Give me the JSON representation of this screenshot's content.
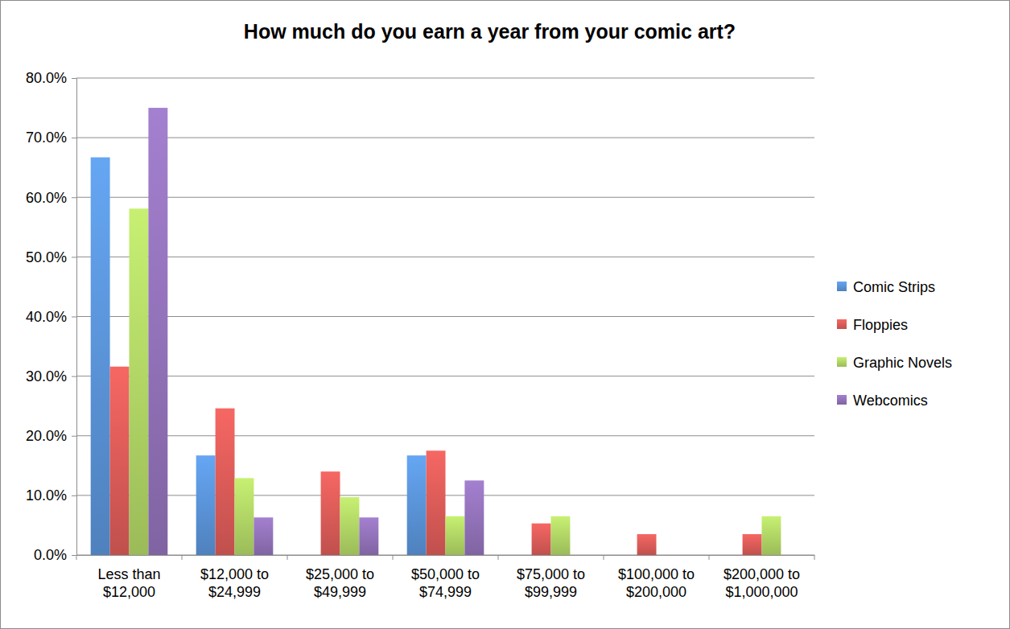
{
  "chart_data": {
    "type": "bar",
    "title": "How much do you earn a year from your comic art?",
    "categories": [
      "Less than $12,000",
      "$12,000 to $24,999",
      "$25,000 to $49,999",
      "$50,000 to $74,999",
      "$75,000 to $99,999",
      "$100,000 to $200,000",
      "$200,000 to $1,000,000"
    ],
    "series": [
      {
        "name": "Comic Strips",
        "color": "#4f81bd",
        "values": [
          66.7,
          16.7,
          0,
          16.7,
          0,
          0,
          0
        ]
      },
      {
        "name": "Floppies",
        "color": "#c0504d",
        "values": [
          31.6,
          24.6,
          14.0,
          17.5,
          5.3,
          3.5,
          3.5
        ]
      },
      {
        "name": "Graphic Novels",
        "color": "#9bbb59",
        "values": [
          58.1,
          12.9,
          9.7,
          6.5,
          6.5,
          0,
          6.5
        ]
      },
      {
        "name": "Webcomics",
        "color": "#8064a2",
        "values": [
          75.0,
          6.3,
          6.3,
          12.5,
          0,
          0,
          0
        ]
      }
    ],
    "ylim": [
      0,
      80
    ],
    "yticks": [
      {
        "value": 0,
        "label": "0.0%"
      },
      {
        "value": 10,
        "label": "10.0%"
      },
      {
        "value": 20,
        "label": "20.0%"
      },
      {
        "value": 30,
        "label": "30.0%"
      },
      {
        "value": 40,
        "label": "40.0%"
      },
      {
        "value": 50,
        "label": "50.0%"
      },
      {
        "value": 60,
        "label": "60.0%"
      },
      {
        "value": 70,
        "label": "70.0%"
      },
      {
        "value": 80,
        "label": "80.0%"
      }
    ],
    "grid": true,
    "legend": "right"
  }
}
